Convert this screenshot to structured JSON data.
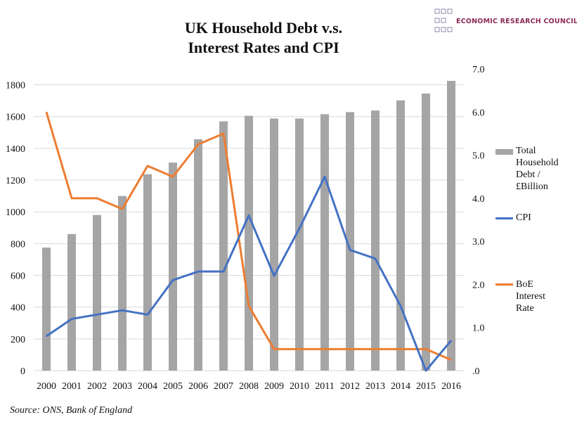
{
  "chart_data": {
    "type": "bar",
    "title": [
      "UK Household Debt v.s.",
      "Interest Rates and CPI"
    ],
    "categories": [
      "2000",
      "2001",
      "2002",
      "2003",
      "2004",
      "2005",
      "2006",
      "2007",
      "2008",
      "2009",
      "2010",
      "2011",
      "2012",
      "2013",
      "2014",
      "2015",
      "2016"
    ],
    "series": [
      {
        "name": "Total Household Debt /£Billion",
        "type": "bar",
        "axis": "left",
        "color": "#a5a5a5",
        "values": [
          775,
          860,
          980,
          1100,
          1237,
          1310,
          1457,
          1570,
          1605,
          1588,
          1588,
          1615,
          1628,
          1638,
          1702,
          1745,
          1825
        ]
      },
      {
        "name": "CPI",
        "type": "line",
        "axis": "right",
        "color": "#4472c4",
        "values": [
          0.8,
          1.2,
          1.3,
          1.4,
          1.3,
          2.1,
          2.3,
          2.3,
          3.6,
          2.2,
          3.3,
          4.5,
          2.8,
          2.6,
          1.5,
          0.0,
          0.7
        ]
      },
      {
        "name": "BoE Interest Rate",
        "type": "line",
        "axis": "right",
        "color": "#ed7d31",
        "values": [
          6.0,
          4.0,
          4.0,
          3.75,
          4.75,
          4.5,
          5.25,
          5.5,
          1.5,
          0.5,
          0.5,
          0.5,
          0.5,
          0.5,
          0.5,
          0.5,
          0.25
        ]
      }
    ],
    "left_axis": {
      "ylim": [
        0,
        1900
      ],
      "ticks": [
        "0",
        "200",
        "400",
        "600",
        "800",
        "1000",
        "1200",
        "1400",
        "1600",
        "1800"
      ]
    },
    "right_axis": {
      "ylim": [
        0,
        7
      ],
      "ticks": [
        ".0",
        "1.0",
        "2.0",
        "3.0",
        "4.0",
        "5.0",
        "6.0",
        "7.0"
      ]
    },
    "grid": true,
    "legend_position": "right",
    "legend": [
      "Total Household Debt /£Billion",
      "CPI",
      "BoE Interest Rate"
    ]
  },
  "logo": {
    "text": "ECONOMIC RESEARCH COUNCIL"
  },
  "source": "Source: ONS, Bank of England"
}
